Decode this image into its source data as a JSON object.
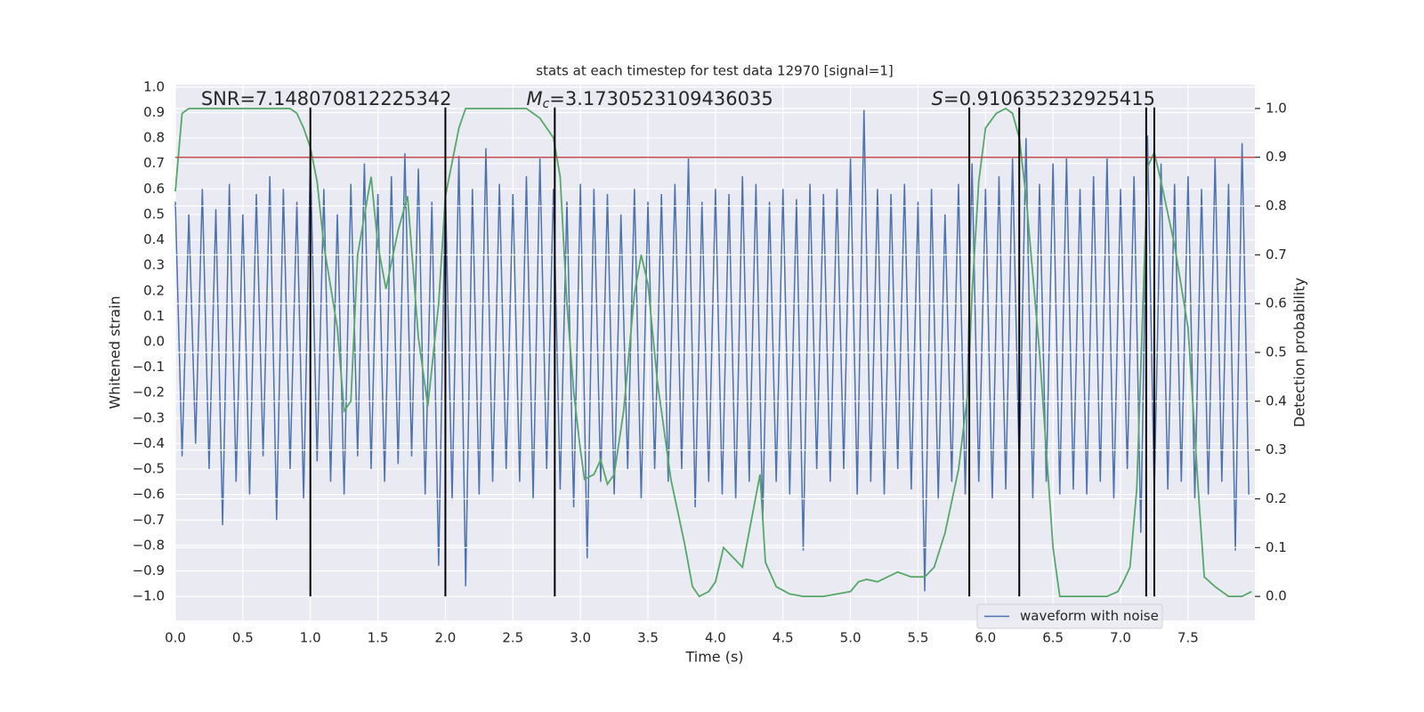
{
  "chart_data": {
    "type": "line",
    "title": "stats at each timestep for test data 12970 [signal=1]",
    "xlabel": "Time (s)",
    "ylabel": "Whitened strain",
    "y2label": "Detection probability",
    "xlim": [
      0,
      7.995
    ],
    "ylim": [
      -1.094,
      1.01
    ],
    "y2lim": [
      -0.049,
      1.049
    ],
    "xticks": [
      {
        "value": 0,
        "label": "0.0"
      },
      {
        "value": 0.5,
        "label": "0.5"
      },
      {
        "value": 1,
        "label": "1.0"
      },
      {
        "value": 1.5,
        "label": "1.5"
      },
      {
        "value": 2,
        "label": "2.0"
      },
      {
        "value": 2.5,
        "label": "2.5"
      },
      {
        "value": 3,
        "label": "3.0"
      },
      {
        "value": 3.5,
        "label": "3.5"
      },
      {
        "value": 4,
        "label": "4.0"
      },
      {
        "value": 4.5,
        "label": "4.5"
      },
      {
        "value": 5,
        "label": "5.0"
      },
      {
        "value": 5.5,
        "label": "5.5"
      },
      {
        "value": 6,
        "label": "6.0"
      },
      {
        "value": 6.5,
        "label": "6.5"
      },
      {
        "value": 7,
        "label": "7.0"
      },
      {
        "value": 7.5,
        "label": "7.5"
      }
    ],
    "yticks": [
      {
        "value": -1,
        "label": "−1.0"
      },
      {
        "value": -0.9,
        "label": "−0.9"
      },
      {
        "value": -0.8,
        "label": "−0.8"
      },
      {
        "value": -0.7,
        "label": "−0.7"
      },
      {
        "value": -0.6,
        "label": "−0.6"
      },
      {
        "value": -0.5,
        "label": "−0.5"
      },
      {
        "value": -0.4,
        "label": "−0.4"
      },
      {
        "value": -0.3,
        "label": "−0.3"
      },
      {
        "value": -0.2,
        "label": "−0.2"
      },
      {
        "value": -0.1,
        "label": "−0.1"
      },
      {
        "value": 0,
        "label": "0.0"
      },
      {
        "value": 0.1,
        "label": "0.1"
      },
      {
        "value": 0.2,
        "label": "0.2"
      },
      {
        "value": 0.3,
        "label": "0.3"
      },
      {
        "value": 0.4,
        "label": "0.4"
      },
      {
        "value": 0.5,
        "label": "0.5"
      },
      {
        "value": 0.6,
        "label": "0.6"
      },
      {
        "value": 0.7,
        "label": "0.7"
      },
      {
        "value": 0.8,
        "label": "0.8"
      },
      {
        "value": 0.9,
        "label": "0.9"
      },
      {
        "value": 1,
        "label": "1.0"
      }
    ],
    "y2ticks": [
      {
        "value": 0,
        "label": "0.0"
      },
      {
        "value": 0.1,
        "label": "0.1"
      },
      {
        "value": 0.2,
        "label": "0.2"
      },
      {
        "value": 0.3,
        "label": "0.3"
      },
      {
        "value": 0.4,
        "label": "0.4"
      },
      {
        "value": 0.5,
        "label": "0.5"
      },
      {
        "value": 0.6,
        "label": "0.6"
      },
      {
        "value": 0.7,
        "label": "0.7"
      },
      {
        "value": 0.8,
        "label": "0.8"
      },
      {
        "value": 0.9,
        "label": "0.9"
      },
      {
        "value": 1,
        "label": "1.0"
      }
    ],
    "grid": true,
    "legend": "lower right",
    "series": [
      {
        "name": "waveform with noise",
        "color": "#4c72b0",
        "x": [
          0,
          0.05,
          0.1,
          0.15,
          0.2,
          0.25,
          0.3,
          0.35,
          0.4,
          0.45,
          0.5,
          0.55,
          0.6,
          0.65,
          0.7,
          0.75,
          0.8,
          0.85,
          0.9,
          0.95,
          1,
          1.05,
          1.1,
          1.15,
          1.2,
          1.25,
          1.3,
          1.35,
          1.4,
          1.45,
          1.5,
          1.55,
          1.6,
          1.65,
          1.7,
          1.75,
          1.8,
          1.85,
          1.9,
          1.95,
          2,
          2.05,
          2.1,
          2.15,
          2.2,
          2.25,
          2.3,
          2.35,
          2.4,
          2.45,
          2.5,
          2.55,
          2.6,
          2.65,
          2.7,
          2.75,
          2.8,
          2.85,
          2.9,
          2.95,
          3,
          3.05,
          3.1,
          3.15,
          3.2,
          3.25,
          3.3,
          3.35,
          3.4,
          3.45,
          3.5,
          3.55,
          3.6,
          3.65,
          3.7,
          3.75,
          3.8,
          3.85,
          3.9,
          3.95,
          4,
          4.05,
          4.1,
          4.15,
          4.2,
          4.25,
          4.3,
          4.35,
          4.4,
          4.45,
          4.5,
          4.55,
          4.6,
          4.65,
          4.7,
          4.75,
          4.8,
          4.85,
          4.9,
          4.95,
          5,
          5.05,
          5.1,
          5.15,
          5.2,
          5.25,
          5.3,
          5.35,
          5.4,
          5.45,
          5.5,
          5.55,
          5.6,
          5.65,
          5.7,
          5.75,
          5.8,
          5.85,
          5.9,
          5.95,
          6,
          6.05,
          6.1,
          6.15,
          6.2,
          6.25,
          6.3,
          6.35,
          6.4,
          6.45,
          6.5,
          6.55,
          6.6,
          6.65,
          6.7,
          6.75,
          6.8,
          6.85,
          6.9,
          6.95,
          7,
          7.05,
          7.1,
          7.15,
          7.2,
          7.25,
          7.3,
          7.35,
          7.4,
          7.45,
          7.5,
          7.55,
          7.6,
          7.65,
          7.7,
          7.75,
          7.8,
          7.85,
          7.9,
          7.95
        ],
        "values": [
          0.55,
          -0.45,
          0.5,
          -0.4,
          0.6,
          -0.5,
          0.52,
          -0.72,
          0.62,
          -0.55,
          0.5,
          -0.6,
          0.58,
          -0.45,
          0.65,
          -0.7,
          0.6,
          -0.5,
          0.55,
          -0.62,
          0.73,
          -0.47,
          0.6,
          -0.55,
          0.5,
          -0.6,
          0.62,
          -0.45,
          0.7,
          -0.5,
          0.58,
          -0.55,
          0.65,
          -0.48,
          0.74,
          -0.45,
          0.68,
          -0.6,
          0.55,
          -0.88,
          0.6,
          -0.62,
          0.73,
          -0.96,
          0.6,
          -0.6,
          0.76,
          -0.55,
          0.62,
          -0.5,
          0.58,
          -0.55,
          0.65,
          -0.62,
          0.72,
          -0.5,
          0.6,
          -0.58,
          0.55,
          -0.65,
          0.62,
          -0.85,
          0.6,
          -0.55,
          0.58,
          -0.6,
          0.5,
          -0.5,
          0.6,
          -0.62,
          0.55,
          -0.5,
          0.58,
          -0.55,
          0.62,
          -0.5,
          0.72,
          -0.65,
          0.55,
          -0.55,
          0.6,
          -0.6,
          0.58,
          -0.62,
          0.65,
          -0.55,
          0.62,
          -0.7,
          0.55,
          -0.55,
          0.6,
          -0.6,
          0.56,
          -0.82,
          0.62,
          -0.5,
          0.58,
          -0.55,
          0.6,
          -0.5,
          0.72,
          -0.6,
          0.91,
          -0.55,
          0.6,
          -0.6,
          0.58,
          -0.5,
          0.62,
          -0.58,
          0.55,
          -0.98,
          0.6,
          -0.62,
          0.5,
          -0.55,
          0.62,
          -0.6,
          0.7,
          -0.55,
          0.6,
          -0.62,
          0.65,
          -0.58,
          0.72,
          -0.5,
          0.8,
          -0.62,
          0.62,
          -0.55,
          0.7,
          -0.6,
          0.72,
          -0.58,
          0.6,
          -0.6,
          0.65,
          -0.55,
          0.72,
          -0.62,
          0.6,
          -0.5,
          0.65,
          -0.75,
          0.81,
          -0.6,
          0.7,
          -0.58,
          0.62,
          -0.55,
          0.65,
          -0.62,
          0.6,
          -0.6,
          0.72,
          -0.55,
          0.62,
          -0.82,
          0.78,
          -0.6
        ]
      }
    ],
    "probability": {
      "color": "#55a868",
      "axis": "y2",
      "x": [
        0,
        0.05,
        0.1,
        0.85,
        0.9,
        0.95,
        1,
        1.05,
        1.1,
        1.2,
        1.25,
        1.3,
        1.35,
        1.45,
        1.5,
        1.56,
        1.65,
        1.72,
        1.8,
        1.87,
        1.95,
        2,
        2.1,
        2.15,
        2.3,
        2.4,
        2.6,
        2.7,
        2.8,
        2.85,
        2.9,
        2.95,
        3,
        3.03,
        3.1,
        3.15,
        3.2,
        3.25,
        3.32,
        3.4,
        3.45,
        3.5,
        3.57,
        3.67,
        3.77,
        3.83,
        3.88,
        3.95,
        4,
        4.06,
        4.13,
        4.2,
        4.33,
        4.37,
        4.45,
        4.55,
        4.65,
        4.8,
        5,
        5.06,
        5.12,
        5.2,
        5.35,
        5.45,
        5.55,
        5.62,
        5.7,
        5.8,
        5.87,
        5.9,
        5.95,
        6,
        6.08,
        6.15,
        6.2,
        6.25,
        6.3,
        6.4,
        6.5,
        6.55,
        6.7,
        6.9,
        6.98,
        7.02,
        7.07,
        7.12,
        7.2,
        7.25,
        7.3,
        7.4,
        7.5,
        7.58,
        7.62,
        7.7,
        7.8,
        7.9,
        7.97
      ],
      "values": [
        0.83,
        0.99,
        1,
        1,
        0.99,
        0.96,
        0.92,
        0.85,
        0.72,
        0.55,
        0.38,
        0.4,
        0.7,
        0.86,
        0.72,
        0.63,
        0.75,
        0.82,
        0.53,
        0.39,
        0.6,
        0.82,
        0.96,
        1,
        1,
        1,
        1,
        0.98,
        0.94,
        0.86,
        0.6,
        0.42,
        0.3,
        0.24,
        0.25,
        0.28,
        0.23,
        0.25,
        0.38,
        0.62,
        0.7,
        0.64,
        0.44,
        0.24,
        0.11,
        0.02,
        0,
        0.01,
        0.03,
        0.1,
        0.08,
        0.06,
        0.25,
        0.07,
        0.02,
        0.005,
        0,
        0,
        0.01,
        0.03,
        0.035,
        0.03,
        0.05,
        0.04,
        0.04,
        0.06,
        0.13,
        0.26,
        0.42,
        0.62,
        0.85,
        0.96,
        0.99,
        1,
        0.99,
        0.94,
        0.82,
        0.5,
        0.1,
        0,
        0,
        0,
        0.01,
        0.03,
        0.06,
        0.22,
        0.88,
        0.91,
        0.85,
        0.72,
        0.55,
        0.2,
        0.04,
        0.02,
        0,
        0,
        0.01
      ]
    },
    "threshold": {
      "value": 0.9,
      "axis": "y2",
      "color": "#c44e52"
    },
    "vlines": {
      "x": [
        1.0,
        2.0,
        2.81,
        5.88,
        6.25,
        7.19,
        7.25
      ],
      "ymin": -1.0,
      "ymax": 0.92,
      "color": "#000000"
    },
    "annotations": [
      {
        "text": "SNR=7.148070812225342"
      },
      {
        "symbol": "M",
        "subscript": "c",
        "text": "=3.1730523109436035"
      },
      {
        "symbol": "S",
        "text": "=0.910635232925415"
      }
    ]
  }
}
